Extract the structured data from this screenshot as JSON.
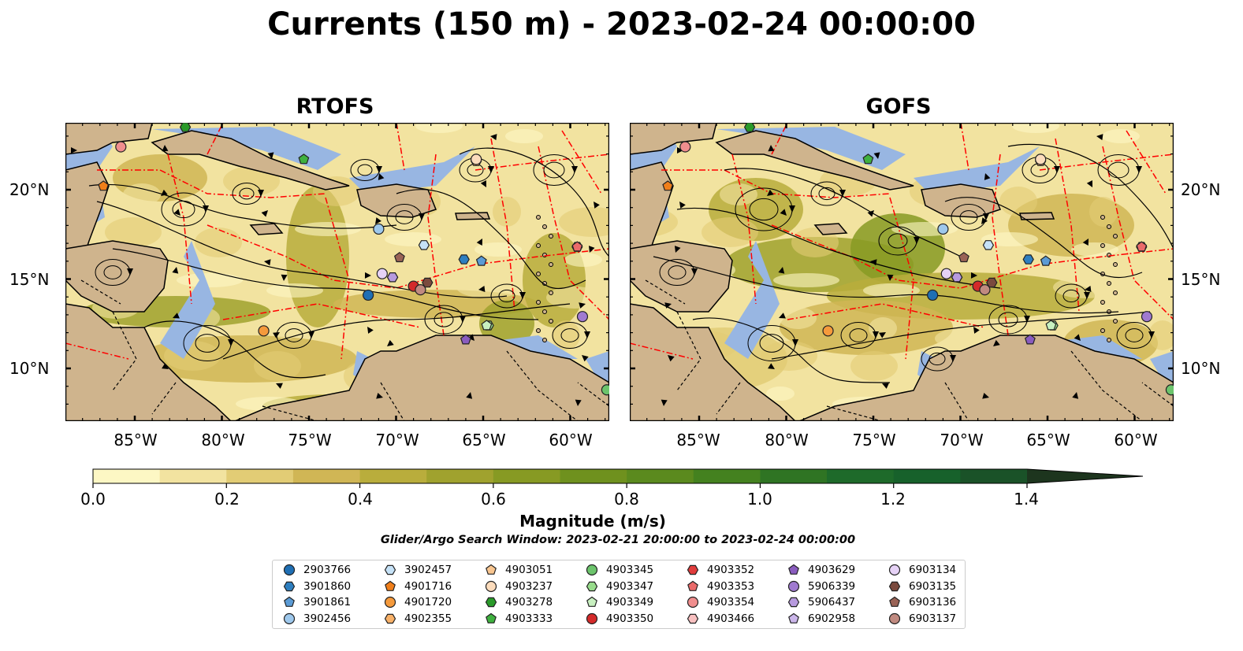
{
  "title": "Currents (150 m) - 2023-02-24 00:00:00",
  "panels": [
    {
      "title": "RTOFS"
    },
    {
      "title": "GOFS"
    }
  ],
  "axes": {
    "lon_ticks": [
      "85°W",
      "80°W",
      "75°W",
      "70°W",
      "65°W",
      "60°W"
    ],
    "lat_ticks": [
      "20°N",
      "15°N",
      "10°N"
    ]
  },
  "colorbar": {
    "label": "Magnitude (m/s)",
    "ticks": [
      "0.0",
      "0.2",
      "0.4",
      "0.6",
      "0.8",
      "1.0",
      "1.2",
      "1.4"
    ],
    "colors": [
      "#fdf7c4",
      "#f2e3a0",
      "#e2cc75",
      "#d0b655",
      "#b9ad3c",
      "#a0a22e",
      "#879a23",
      "#6f911e",
      "#5b8a1e",
      "#44811f",
      "#2f7423",
      "#1e6a2a",
      "#17612b",
      "#1a5228",
      "#1c4423",
      "#1d351e"
    ]
  },
  "search_window": "Glider/Argo Search Window: 2023-02-21 20:00:00 to 2023-02-24 00:00:00",
  "legend": [
    {
      "label": "2903766",
      "marker": "circle",
      "color": "#1f6fb4"
    },
    {
      "label": "3901860",
      "marker": "hexagon",
      "color": "#2e7fc0"
    },
    {
      "label": "3901861",
      "marker": "pentagon",
      "color": "#5b9bd5"
    },
    {
      "label": "3902456",
      "marker": "circle",
      "color": "#9ec8ec"
    },
    {
      "label": "3902457",
      "marker": "hexagon",
      "color": "#c6e2f7"
    },
    {
      "label": "4901716",
      "marker": "pentagon",
      "color": "#f07f1a"
    },
    {
      "label": "4901720",
      "marker": "circle",
      "color": "#f59a3c"
    },
    {
      "label": "4902355",
      "marker": "hexagon",
      "color": "#f8b169"
    },
    {
      "label": "4903051",
      "marker": "pentagon",
      "color": "#f9c690"
    },
    {
      "label": "4903237",
      "marker": "circle",
      "color": "#fcdcbc"
    },
    {
      "label": "4903278",
      "marker": "hexagon",
      "color": "#2a9a2a"
    },
    {
      "label": "4903333",
      "marker": "pentagon",
      "color": "#3fb13f"
    },
    {
      "label": "4903345",
      "marker": "circle",
      "color": "#6cc46c"
    },
    {
      "label": "4903347",
      "marker": "hexagon",
      "color": "#98dc8c"
    },
    {
      "label": "4903349",
      "marker": "pentagon",
      "color": "#c8f0c0"
    },
    {
      "label": "4903350",
      "marker": "circle",
      "color": "#d42a2a"
    },
    {
      "label": "4903352",
      "marker": "hexagon",
      "color": "#e03c3c"
    },
    {
      "label": "4903353",
      "marker": "pentagon",
      "color": "#ea6a6a"
    },
    {
      "label": "4903354",
      "marker": "circle",
      "color": "#f08e8e"
    },
    {
      "label": "4903466",
      "marker": "hexagon",
      "color": "#f8c0c0"
    },
    {
      "label": "4903629",
      "marker": "pentagon",
      "color": "#8a5cbf"
    },
    {
      "label": "5906339",
      "marker": "circle",
      "color": "#a07ad0"
    },
    {
      "label": "5906437",
      "marker": "hexagon",
      "color": "#b79ade"
    },
    {
      "label": "6902958",
      "marker": "pentagon",
      "color": "#cbb6ea"
    },
    {
      "label": "6903134",
      "marker": "circle",
      "color": "#e6d2f6"
    },
    {
      "label": "6903135",
      "marker": "hexagon",
      "color": "#7a4a3e"
    },
    {
      "label": "6903136",
      "marker": "pentagon",
      "color": "#9a6356"
    },
    {
      "label": "6903137",
      "marker": "circle",
      "color": "#c08a80"
    }
  ],
  "colors": {
    "land": "#cfb48d",
    "shallow_water": "#98b6e2",
    "eez_line": "#ff0000",
    "border_line": "#000000",
    "streamline": "#000000"
  }
}
